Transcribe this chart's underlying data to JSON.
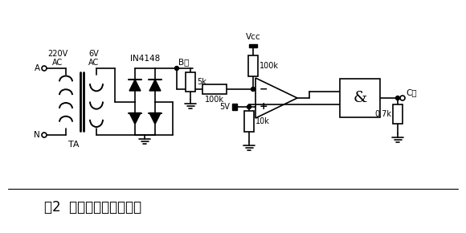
{
  "title": "图2  电压过零点检测电路",
  "title_fontsize": 12,
  "bg_color": "#ffffff",
  "line_color": "#000000",
  "labels": {
    "220V_AC": "220V\nAC",
    "6V_AC": "6V\nAC",
    "IN4148": "IN4148",
    "B_point": "B点",
    "Vcc": "Vcc",
    "100k_top": "100k",
    "100k_mid": "100k",
    "5k": "5k",
    "10k": "10k",
    "5V": "5V",
    "0.7k": "0.7k",
    "TA": "TA",
    "C_point": "C点",
    "amp_symbol": "&",
    "A_label": "A",
    "N_label": "N"
  }
}
